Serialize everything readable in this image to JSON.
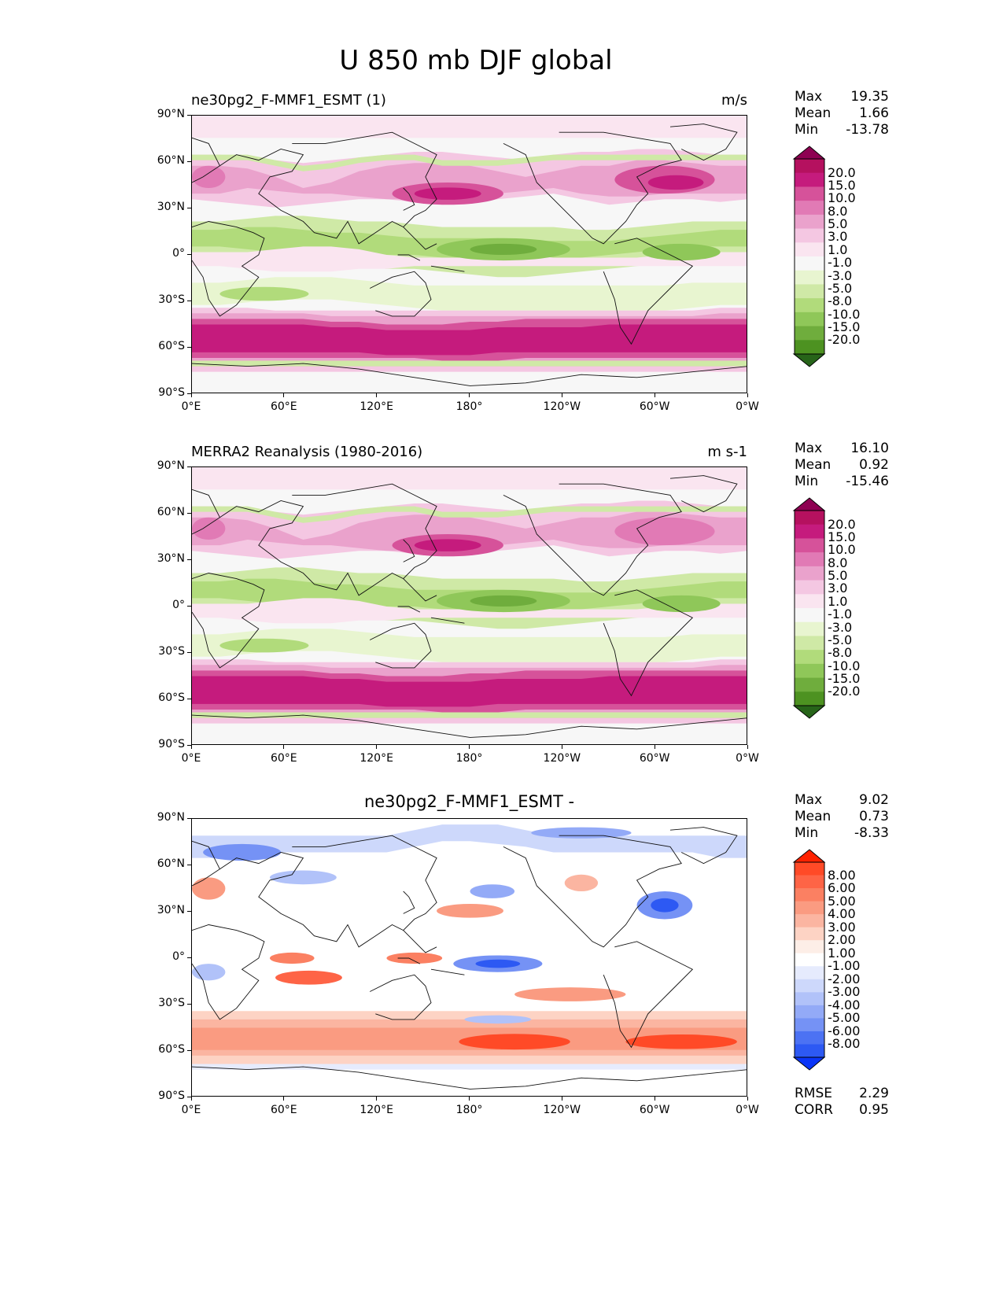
{
  "figure_title": "U 850 mb DJF global",
  "x_ticks": [
    "0°E",
    "60°E",
    "120°E",
    "180°",
    "120°W",
    "60°W",
    "0°W"
  ],
  "y_ticks": [
    "90°N",
    "60°N",
    "30°N",
    "0°",
    "30°S",
    "60°S",
    "90°S"
  ],
  "panels": [
    {
      "title_left": "ne30pg2_F-MMF1_ESMT (1)",
      "title_center": "",
      "units": "m/s",
      "stats": [
        {
          "label": "Max",
          "value": "19.35"
        },
        {
          "label": "Mean",
          "value": "1.66"
        },
        {
          "label": "Min",
          "value": "-13.78"
        }
      ],
      "colorbar_labels": [
        "20.0",
        "15.0",
        "10.0",
        "8.0",
        "5.0",
        "3.0",
        "1.0",
        "-1.0",
        "-3.0",
        "-5.0",
        "-8.0",
        "-10.0",
        "-15.0",
        "-20.0"
      ],
      "extra_stats": []
    },
    {
      "title_left": "MERRA2 Reanalysis (1980-2016)",
      "title_center": "",
      "units": "m s-1",
      "stats": [
        {
          "label": "Max",
          "value": "16.10"
        },
        {
          "label": "Mean",
          "value": "0.92"
        },
        {
          "label": "Min",
          "value": "-15.46"
        }
      ],
      "colorbar_labels": [
        "20.0",
        "15.0",
        "10.0",
        "8.0",
        "5.0",
        "3.0",
        "1.0",
        "-1.0",
        "-3.0",
        "-5.0",
        "-8.0",
        "-10.0",
        "-15.0",
        "-20.0"
      ],
      "extra_stats": []
    },
    {
      "title_left": "",
      "title_center": "ne30pg2_F-MMF1_ESMT -",
      "units": "",
      "stats": [
        {
          "label": "Max",
          "value": "9.02"
        },
        {
          "label": "Mean",
          "value": "0.73"
        },
        {
          "label": "Min",
          "value": "-8.33"
        }
      ],
      "colorbar_labels": [
        "8.00",
        "6.00",
        "5.00",
        "4.00",
        "3.00",
        "2.00",
        "1.00",
        "-1.00",
        "-2.00",
        "-3.00",
        "-4.00",
        "-5.00",
        "-6.00",
        "-8.00"
      ],
      "extra_stats": [
        {
          "label": "RMSE",
          "value": "2.29"
        },
        {
          "label": "CORR",
          "value": "0.95"
        }
      ]
    }
  ],
  "colors": {
    "piyg": [
      "#8e0152",
      "#b5115f",
      "#c51b7d",
      "#d6529a",
      "#e17ab5",
      "#eaa2cc",
      "#f4c7e2",
      "#fae5f0",
      "#f7f7f7",
      "#e8f5d0",
      "#cfe9a6",
      "#b1db7b",
      "#8fc759",
      "#6fad3d",
      "#4d9221",
      "#276419"
    ],
    "diff": [
      "#ff2200",
      "#ff4a27",
      "#fe6446",
      "#fb8062",
      "#fa9b81",
      "#fbb5a1",
      "#fdd3c4",
      "#fdeee7",
      "#ffffff",
      "#e6ebfd",
      "#cdd8fb",
      "#b1c2f9",
      "#93aaf7",
      "#7592f5",
      "#4c72f3",
      "#2d59f3",
      "#0a35f7"
    ]
  }
}
